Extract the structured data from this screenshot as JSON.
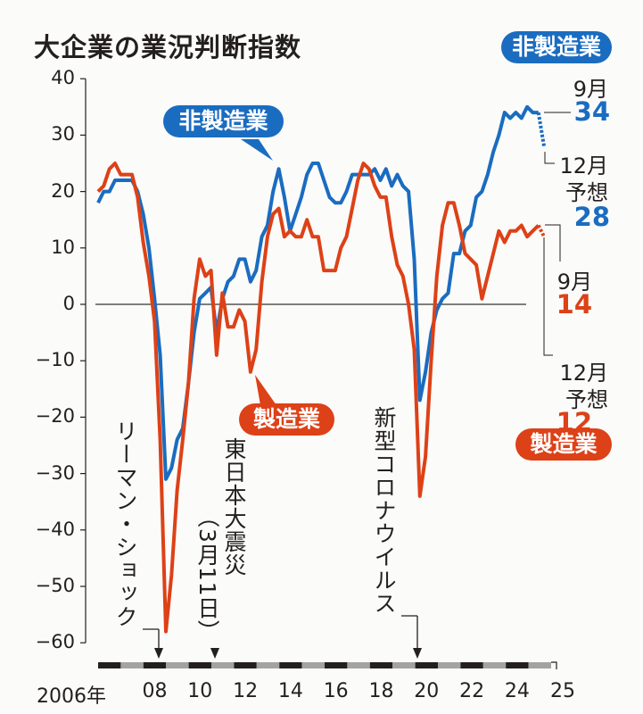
{
  "chart_data": {
    "type": "line",
    "title": "大企業の業況判断指数",
    "xlabel": "",
    "ylabel": "",
    "ylim": [
      -60,
      40
    ],
    "yticks": [
      "40",
      "30",
      "20",
      "10",
      "0",
      "-10",
      "-20",
      "-30",
      "-40",
      "-50",
      "-60"
    ],
    "xticks": [
      "2006年",
      "08",
      "10",
      "12",
      "14",
      "16",
      "18",
      "20",
      "22",
      "24",
      "25"
    ],
    "x_start": "2006 Q1",
    "x_end": "2025 Q4",
    "frequency": "quarterly",
    "series": [
      {
        "name": "非製造業",
        "color": "#1a6cc0",
        "values": [
          18,
          20,
          20,
          22,
          22,
          22,
          22,
          20,
          16,
          10,
          1,
          -9,
          -31,
          -29,
          -24,
          -22,
          -14,
          -5,
          1,
          2,
          3,
          -5,
          1,
          4,
          5,
          8,
          8,
          4,
          6,
          12,
          14,
          20,
          24,
          19,
          13,
          16,
          19,
          23,
          25,
          25,
          22,
          19,
          18,
          18,
          20,
          23,
          23,
          23,
          23,
          24,
          22,
          24,
          21,
          23,
          21,
          20,
          8,
          -17,
          -12,
          -5,
          -1,
          1,
          2,
          9,
          9,
          13,
          14,
          19,
          20,
          23,
          27,
          30,
          34,
          33,
          34,
          33,
          35,
          34,
          34
        ],
        "forecast": 28
      },
      {
        "name": "製造業",
        "color": "#dd4117",
        "values": [
          20,
          21,
          24,
          25,
          23,
          23,
          23,
          19,
          11,
          5,
          -3,
          -24,
          -58,
          -48,
          -33,
          -24,
          -14,
          1,
          8,
          5,
          6,
          -9,
          2,
          -4,
          -4,
          -1,
          -3,
          -12,
          -8,
          4,
          12,
          16,
          17,
          12,
          13,
          12,
          12,
          15,
          12,
          12,
          6,
          6,
          6,
          10,
          12,
          17,
          22,
          25,
          24,
          21,
          19,
          19,
          12,
          7,
          5,
          0,
          -8,
          -34,
          -27,
          -10,
          5,
          14,
          18,
          18,
          14,
          9,
          8,
          7,
          1,
          5,
          9,
          13,
          11,
          13,
          13,
          14,
          12,
          13,
          14
        ],
        "forecast": 12
      }
    ],
    "legend": {
      "top_right": "非製造業",
      "bottom_right": "製造業"
    },
    "callouts": {
      "nonmanufacturing": "非製造業",
      "manufacturing": "製造業"
    },
    "annotations": {
      "lehman": "リーマン・ショック",
      "quake": "東日本大震災",
      "quake_date": "（3月11日）",
      "corona": "新型コロナウイルス"
    },
    "endlabels": {
      "nonmfg_latest_label": "9月",
      "nonmfg_latest_value": "34",
      "nonmfg_forecast_label1": "12月",
      "nonmfg_forecast_label2": "予想",
      "nonmfg_forecast_value": "28",
      "mfg_latest_label": "9月",
      "mfg_latest_value": "14",
      "mfg_forecast_label1": "12月",
      "mfg_forecast_label2": "予想",
      "mfg_forecast_value": "12"
    }
  }
}
